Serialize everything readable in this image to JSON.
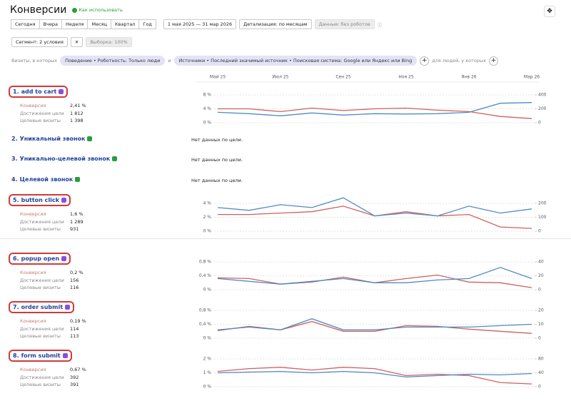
{
  "header": {
    "title": "Конверсии",
    "help": "Как использовать"
  },
  "toolbar": {
    "periods": [
      "Сегодня",
      "Вчера",
      "Неделя",
      "Месяц",
      "Квартал",
      "Год"
    ],
    "date_range": "1 мая 2025 — 31 мар 2026",
    "detail": "Детализация: по месяцам",
    "data": "Данные: без роботов"
  },
  "segment": {
    "segment": "Сегмент: 2 условия",
    "sample": "Выборка: 100%"
  },
  "filters": {
    "label": "Визиты, в которых",
    "chip1": "Поведение • Роботность: Только люди",
    "and": "и",
    "chip2": "Источники • Последний значимый источник • Поисковая система: Google или Яндекс или Bing",
    "tail": "для людей, у которых"
  },
  "months": [
    "Май 25",
    null,
    "Июл 25",
    null,
    "Сен 25",
    null,
    "Ноя 25",
    null,
    "Янв 26",
    null,
    "Мар 26"
  ],
  "metric_labels": [
    "Конверсия",
    "Достижения цели",
    "Целевые визиты"
  ],
  "goals": [
    {
      "number": "1.",
      "name": "add to cart",
      "icon_color": "#8a4fd8",
      "metrics": [
        "2,41 %",
        "1 812",
        "1 398"
      ],
      "chart": {
        "ylim": [
          0,
          8
        ],
        "yticks": [
          {
            "value": 0,
            "label": "0 %"
          },
          {
            "value": 4,
            "label": "4 %"
          },
          {
            "value": 8,
            "label": "8 %"
          }
        ],
        "y2lim": [
          0,
          400
        ],
        "y2ticks": [
          0,
          200,
          400
        ],
        "series": [
          {
            "color": "#d0605c",
            "values": [
              4.0,
              4.0,
              3.2,
              4.2,
              3.5,
              4.0,
              4.2,
              3.6,
              3.2,
              1.8,
              1.2
            ]
          },
          {
            "color": "#4f8bc4",
            "axis": "y2",
            "values": [
              150,
              130,
              100,
              140,
              110,
              130,
              125,
              130,
              150,
              280,
              290
            ]
          }
        ]
      }
    },
    {
      "number": "2.",
      "name": "Уникальный звонок",
      "icon_color": "#2a9d3a",
      "nodata": "Нет данных по цели."
    },
    {
      "number": "3.",
      "name": "Уникально-целевой звонок",
      "icon_color": "#2a9d3a",
      "nodata": "Нет данных по цели."
    },
    {
      "number": "4.",
      "name": "Целевой звонок",
      "icon_color": "#2a9d3a",
      "nodata": "Нет данных по цели."
    },
    {
      "number": "5.",
      "name": "button click",
      "icon_color": "#8a4fd8",
      "metrics": [
        "1,6 %",
        "1 289",
        "931"
      ],
      "chart": {
        "ylim": [
          0,
          4
        ],
        "yticks": [
          {
            "value": 0,
            "label": "0 %"
          },
          {
            "value": 2,
            "label": "2 %"
          },
          {
            "value": 4,
            "label": "4 %"
          }
        ],
        "y2lim": [
          0,
          200
        ],
        "y2ticks": [
          0,
          100,
          200
        ],
        "series": [
          {
            "color": "#d0605c",
            "values": [
              2.4,
              2.4,
              2.6,
              2.8,
              3.6,
              2.2,
              2.8,
              2.2,
              2.4,
              0.6,
              0.4
            ]
          },
          {
            "color": "#4f8bc4",
            "axis": "y2",
            "values": [
              170,
              150,
              190,
              170,
              240,
              110,
              130,
              110,
              180,
              130,
              160
            ]
          }
        ]
      }
    },
    {
      "number": "6.",
      "name": "popup open",
      "icon_color": "#8a4fd8",
      "metrics": [
        "0,2 %",
        "156",
        "116"
      ],
      "chart": {
        "ylim": [
          0,
          0.8
        ],
        "yticks": [
          {
            "value": 0,
            "label": "0 %"
          },
          {
            "value": 0.4,
            "label": "0,4 %"
          },
          {
            "value": 0.8,
            "label": "0,8 %"
          }
        ],
        "y2lim": [
          0,
          40
        ],
        "y2ticks": [
          0,
          20,
          40
        ],
        "series": [
          {
            "color": "#d0605c",
            "values": [
              0.34,
              0.32,
              0.16,
              0.22,
              0.36,
              0.2,
              0.32,
              0.42,
              0.22,
              0.2,
              0.06
            ]
          },
          {
            "color": "#4f8bc4",
            "axis": "y2",
            "values": [
              16,
              12,
              8,
              12,
              16,
              10,
              10,
              14,
              16,
              32,
              16
            ]
          }
        ]
      }
    },
    {
      "number": "7.",
      "name": "order submit",
      "icon_color": "#8a4fd8",
      "metrics": [
        "0,19 %",
        "114",
        "113"
      ],
      "chart": {
        "ylim": [
          0,
          0.8
        ],
        "yticks": [
          {
            "value": 0,
            "label": "0 %"
          },
          {
            "value": 0.4,
            "label": "0,4 %"
          },
          {
            "value": 0.8,
            "label": "0,8 %"
          }
        ],
        "y2lim": [
          0,
          20
        ],
        "y2ticks": [
          0,
          10,
          20
        ],
        "series": [
          {
            "color": "#d0605c",
            "values": [
              0.22,
              0.34,
              0.24,
              0.48,
              0.2,
              0.2,
              0.36,
              0.34,
              0.26,
              0.2,
              0.14
            ]
          },
          {
            "color": "#4f8bc4",
            "axis": "y2",
            "values": [
              6,
              8,
              6,
              14,
              6,
              6,
              8,
              8,
              8,
              9,
              10
            ]
          }
        ]
      }
    },
    {
      "number": "8.",
      "name": "form submit",
      "icon_color": "#8a4fd8",
      "metrics": [
        "0,67 %",
        "392",
        "391"
      ],
      "chart": {
        "ylim": [
          0,
          2
        ],
        "yticks": [
          {
            "value": 0,
            "label": "0 %"
          },
          {
            "value": 1,
            "label": "1 %"
          },
          {
            "value": 2,
            "label": "2 %"
          }
        ],
        "y2lim": [
          0,
          80
        ],
        "y2ticks": [
          0,
          40,
          80
        ],
        "series": [
          {
            "color": "#d0605c",
            "values": [
              1.1,
              1.3,
              1.4,
              1.2,
              1.4,
              1.3,
              0.8,
              0.9,
              0.8,
              0.3,
              0.2
            ]
          },
          {
            "color": "#4f8bc4",
            "axis": "y2",
            "values": [
              40,
              42,
              44,
              40,
              44,
              40,
              28,
              32,
              36,
              34,
              38
            ]
          }
        ]
      }
    }
  ]
}
